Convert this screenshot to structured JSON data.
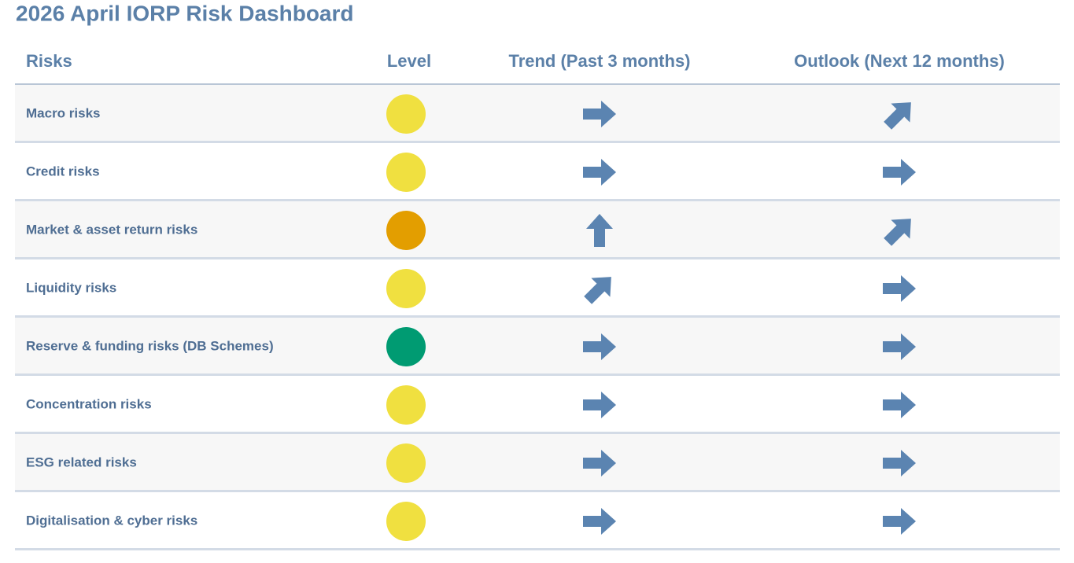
{
  "header": {
    "title": "2026 April IORP Risk Dashboard"
  },
  "table": {
    "columns": [
      "Risks",
      "Level",
      "Trend (Past 3 months)",
      "Outlook (Next 12 months)"
    ],
    "rows": [
      {
        "name": "Macro risks",
        "level_color": "#f0e040",
        "trend_angle": 0,
        "outlook_angle": 45
      },
      {
        "name": "Credit risks",
        "level_color": "#f0e040",
        "trend_angle": 0,
        "outlook_angle": 0
      },
      {
        "name": "Market & asset return risks",
        "level_color": "#e39e00",
        "trend_angle": 90,
        "outlook_angle": 45
      },
      {
        "name": "Liquidity risks",
        "level_color": "#f0e040",
        "trend_angle": 45,
        "outlook_angle": 0
      },
      {
        "name": "Reserve & funding risks (DB Schemes)",
        "level_color": "#009b72",
        "trend_angle": 0,
        "outlook_angle": 0
      },
      {
        "name": "Concentration risks",
        "level_color": "#f0e040",
        "trend_angle": 0,
        "outlook_angle": 0
      },
      {
        "name": "ESG related risks",
        "level_color": "#f0e040",
        "trend_angle": 0,
        "outlook_angle": 0
      },
      {
        "name": "Digitalisation & cyber risks",
        "level_color": "#f0e040",
        "trend_angle": 0,
        "outlook_angle": 0
      }
    ]
  }
}
